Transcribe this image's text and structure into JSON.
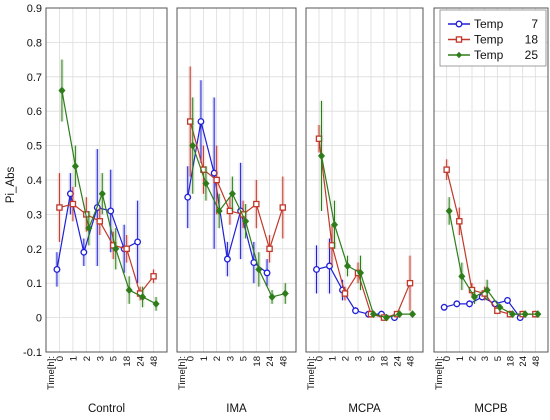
{
  "chart_data": {
    "type": "line",
    "ylabel": "Pi_Abs",
    "ylim": [
      -0.1,
      0.9
    ],
    "y_ticks": [
      "-0.1",
      "0",
      "0.1",
      "0.2",
      "0.3",
      "0.4",
      "0.5",
      "0.6",
      "0.7",
      "0.8",
      "0.9"
    ],
    "x_axis_prefix": "Time[h]:",
    "categories": [
      "0",
      "1",
      "2",
      "3",
      "5",
      "18",
      "24",
      "48"
    ],
    "grid": true,
    "legend_position": "top-right",
    "legend": [
      {
        "label": "Temp",
        "value": "7",
        "color": "#1f1fd8",
        "marker": "circle"
      },
      {
        "label": "Temp",
        "value": "18",
        "color": "#c0392b",
        "marker": "square"
      },
      {
        "label": "Temp",
        "value": "25",
        "color": "#2e7d1a",
        "marker": "diamond"
      }
    ],
    "panels": [
      {
        "label": "Control",
        "series": [
          {
            "name": "7",
            "color": "#1f1fd8",
            "marker": "circle",
            "values": [
              0.14,
              0.36,
              0.19,
              0.32,
              0.31,
              0.2,
              0.22,
              null
            ],
            "errors": [
              0.05,
              0.06,
              0.04,
              0.17,
              0.12,
              0.07,
              0.12,
              null
            ]
          },
          {
            "name": "18",
            "color": "#c0392b",
            "marker": "square",
            "values": [
              0.32,
              0.33,
              0.3,
              0.28,
              0.21,
              0.2,
              0.07,
              0.12
            ],
            "errors": [
              0.1,
              0.05,
              0.05,
              0.04,
              0.04,
              0.04,
              0.02,
              0.02
            ]
          },
          {
            "name": "25",
            "color": "#2e7d1a",
            "marker": "diamond",
            "values": [
              0.66,
              0.44,
              0.26,
              0.36,
              0.2,
              0.08,
              0.06,
              0.04
            ],
            "errors": [
              0.09,
              0.06,
              0.05,
              0.06,
              0.06,
              0.04,
              0.03,
              0.02
            ]
          }
        ]
      },
      {
        "label": "IMA",
        "series": [
          {
            "name": "7",
            "color": "#1f1fd8",
            "marker": "circle",
            "values": [
              0.35,
              0.57,
              0.42,
              0.17,
              0.31,
              0.16,
              0.13,
              null
            ],
            "errors": [
              0.09,
              0.12,
              0.22,
              0.05,
              0.14,
              0.06,
              0.04,
              null
            ]
          },
          {
            "name": "18",
            "color": "#c0392b",
            "marker": "square",
            "values": [
              0.57,
              0.43,
              0.4,
              0.31,
              0.3,
              0.33,
              0.2,
              0.32
            ],
            "errors": [
              0.16,
              0.07,
              0.1,
              0.04,
              0.04,
              0.07,
              0.04,
              0.09
            ]
          },
          {
            "name": "25",
            "color": "#2e7d1a",
            "marker": "diamond",
            "values": [
              0.5,
              0.39,
              0.31,
              0.36,
              0.28,
              0.14,
              0.06,
              0.07
            ],
            "errors": [
              0.14,
              0.05,
              0.05,
              0.05,
              0.05,
              0.05,
              0.02,
              0.03
            ]
          }
        ]
      },
      {
        "label": "MCPA",
        "series": [
          {
            "name": "7",
            "color": "#1f1fd8",
            "marker": "circle",
            "values": [
              0.14,
              0.15,
              0.08,
              0.02,
              0.01,
              0.01,
              0.0,
              null
            ],
            "errors": [
              0.07,
              0.08,
              0.03,
              0.01,
              0.01,
              0.01,
              0.01,
              null
            ]
          },
          {
            "name": "18",
            "color": "#c0392b",
            "marker": "square",
            "values": [
              0.52,
              0.21,
              0.07,
              0.13,
              0.01,
              0.0,
              0.01,
              0.1
            ],
            "errors": [
              0.04,
              0.06,
              0.02,
              0.03,
              0.01,
              0.01,
              0.01,
              0.08
            ]
          },
          {
            "name": "25",
            "color": "#2e7d1a",
            "marker": "diamond",
            "values": [
              0.47,
              0.27,
              0.15,
              0.13,
              0.01,
              0.0,
              0.01,
              0.01
            ],
            "errors": [
              0.16,
              0.07,
              0.03,
              0.05,
              0.01,
              0.01,
              0.01,
              0.01
            ]
          }
        ]
      },
      {
        "label": "MCPB",
        "series": [
          {
            "name": "7",
            "color": "#1f1fd8",
            "marker": "circle",
            "values": [
              0.03,
              0.04,
              0.04,
              0.06,
              0.04,
              0.05,
              0.0,
              null
            ],
            "errors": [
              0.01,
              0.01,
              0.01,
              0.01,
              0.01,
              0.01,
              0.01,
              null
            ]
          },
          {
            "name": "18",
            "color": "#c0392b",
            "marker": "square",
            "values": [
              0.43,
              0.28,
              0.08,
              0.07,
              0.02,
              0.01,
              0.01,
              0.01
            ],
            "errors": [
              0.03,
              0.04,
              0.02,
              0.02,
              0.01,
              0.01,
              0.01,
              0.01
            ]
          },
          {
            "name": "25",
            "color": "#2e7d1a",
            "marker": "diamond",
            "values": [
              0.31,
              0.12,
              0.06,
              0.08,
              0.03,
              0.01,
              0.01,
              0.01
            ],
            "errors": [
              0.04,
              0.04,
              0.02,
              0.03,
              0.01,
              0.01,
              0.01,
              0.01
            ]
          }
        ]
      }
    ]
  }
}
